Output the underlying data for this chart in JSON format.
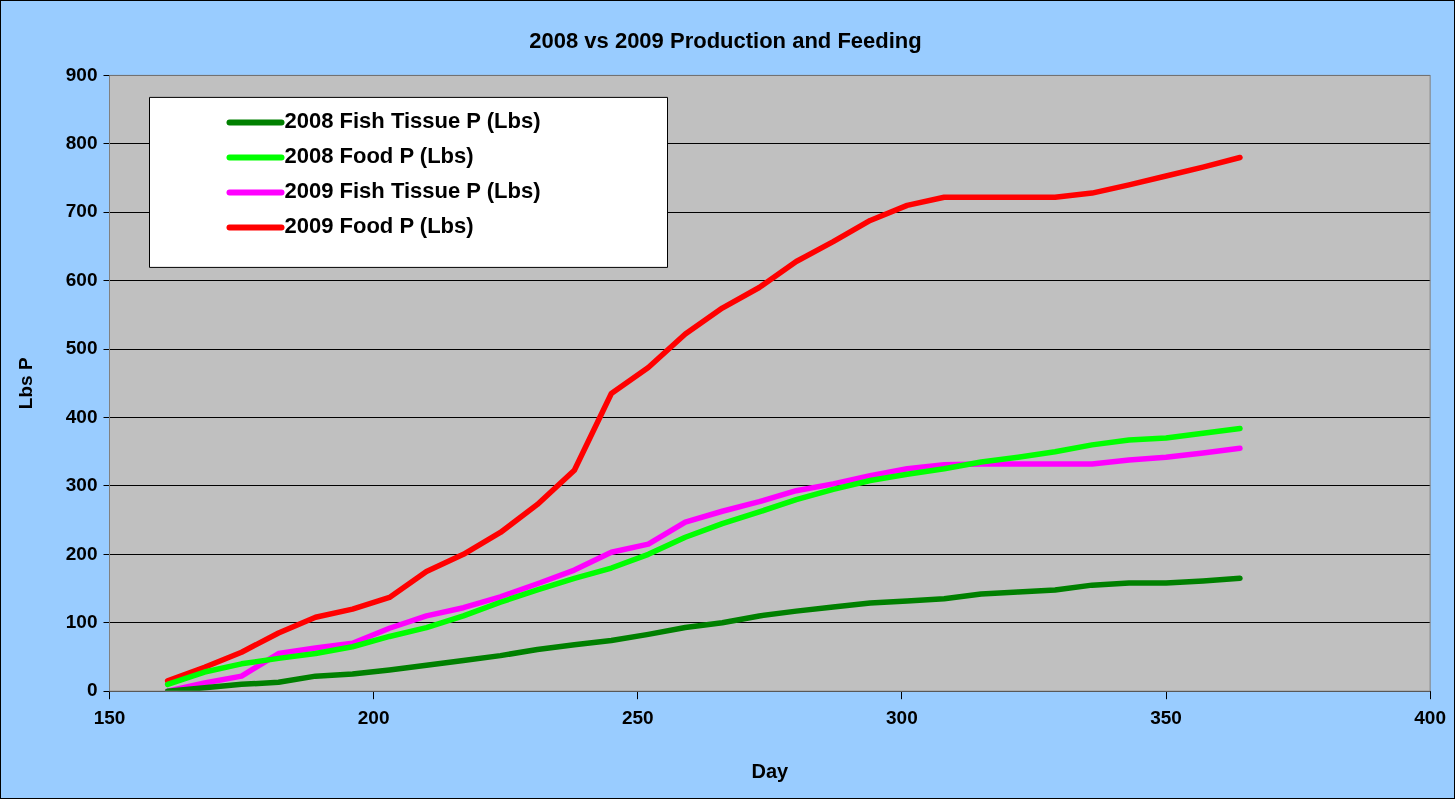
{
  "chart_data": {
    "type": "line",
    "title": "2008 vs 2009 Production and Feeding",
    "xlabel": "Day",
    "ylabel": "Lbs P",
    "x": [
      161,
      168,
      175,
      182,
      189,
      196,
      203,
      210,
      217,
      224,
      231,
      238,
      245,
      252,
      259,
      266,
      273,
      280,
      287,
      294,
      301,
      308,
      315,
      322,
      329,
      336,
      343,
      350,
      357,
      364
    ],
    "series": [
      {
        "name": "2008 Fish Tissue P (Lbs)",
        "color": "#008000",
        "values": [
          0,
          5,
          10,
          13,
          22,
          25,
          31,
          38,
          45,
          52,
          61,
          68,
          74,
          83,
          93,
          100,
          110,
          117,
          123,
          129,
          132,
          135,
          142,
          145,
          148,
          155,
          158,
          158,
          161,
          165
        ]
      },
      {
        "name": "2008 Food P (Lbs)",
        "color": "#00ff00",
        "values": [
          10,
          28,
          40,
          48,
          55,
          65,
          80,
          93,
          110,
          130,
          148,
          165,
          180,
          200,
          225,
          245,
          262,
          280,
          295,
          308,
          317,
          325,
          335,
          342,
          350,
          360,
          367,
          370,
          377,
          384
        ]
      },
      {
        "name": "2009 Fish Tissue P (Lbs)",
        "color": "#ff00ff",
        "values": [
          0,
          12,
          22,
          55,
          63,
          70,
          92,
          110,
          122,
          138,
          157,
          177,
          203,
          215,
          247,
          263,
          277,
          293,
          303,
          315,
          325,
          331,
          332,
          332,
          332,
          332,
          338,
          342,
          348,
          355
        ]
      },
      {
        "name": "2009 Food P (Lbs)",
        "color": "#ff0000",
        "values": [
          15,
          35,
          57,
          85,
          108,
          120,
          137,
          175,
          200,
          232,
          273,
          323,
          435,
          473,
          522,
          560,
          590,
          628,
          657,
          688,
          710,
          722,
          722,
          722,
          722,
          728,
          740,
          753,
          766,
          780
        ]
      }
    ],
    "xlim": [
      150,
      400
    ],
    "xticks": [
      150,
      200,
      250,
      300,
      350,
      400
    ],
    "ylim": [
      0,
      900
    ],
    "yticks": [
      0,
      100,
      200,
      300,
      400,
      500,
      600,
      700,
      800,
      900
    ],
    "grid": "y",
    "legend": "top left",
    "marker": "none",
    "line_style": "solid"
  }
}
